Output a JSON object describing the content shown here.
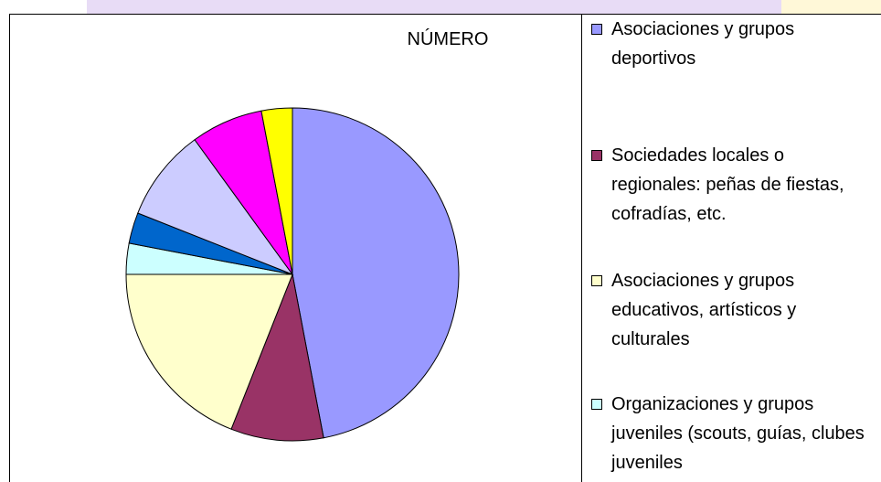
{
  "chart_data": {
    "type": "pie",
    "title": "NÚMERO",
    "categories": [
      "Asociaciones y grupos deportivos",
      "Sociedades locales o regionales: peñas de fiestas, cofradías, etc.",
      "Asociaciones y grupos educativos, artísticos y culturales",
      "Organizaciones y grupos juveniles (scouts, guías, clubes juveniles",
      null,
      null,
      null,
      null
    ],
    "values": [
      47,
      9,
      19,
      3,
      3,
      9,
      7,
      3
    ],
    "colors": [
      "#9999ff",
      "#993366",
      "#ffffcc",
      "#ccffff",
      "#0066cc",
      "#ccccff",
      "#ff00ff",
      "#ffff00"
    ]
  }
}
